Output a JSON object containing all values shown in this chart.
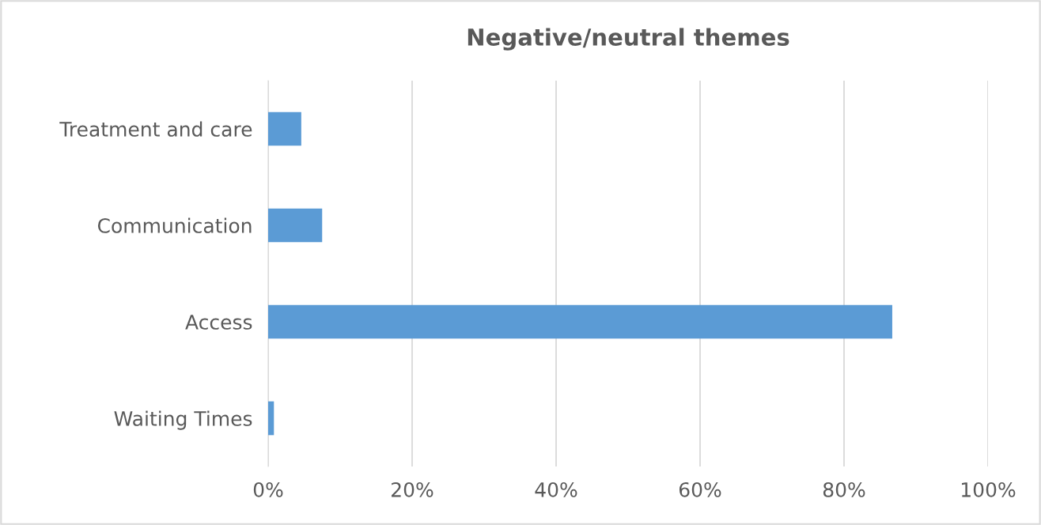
{
  "chart_data": {
    "type": "bar",
    "title": "Negative/neutral themes",
    "orientation": "horizontal",
    "categories": [
      "Treatment and care",
      "Communication",
      "Access",
      "Waiting Times"
    ],
    "values": [
      4.6,
      7.5,
      86.7,
      0.8
    ],
    "color": "#5b9bd5",
    "xlim": [
      0,
      100
    ],
    "xticks": [
      {
        "value": 0,
        "label": "0%"
      },
      {
        "value": 20,
        "label": "20%"
      },
      {
        "value": 40,
        "label": "40%"
      },
      {
        "value": 60,
        "label": "60%"
      },
      {
        "value": 80,
        "label": "80%"
      },
      {
        "value": 100,
        "label": "100%"
      }
    ],
    "grid": "x",
    "legend": false
  }
}
